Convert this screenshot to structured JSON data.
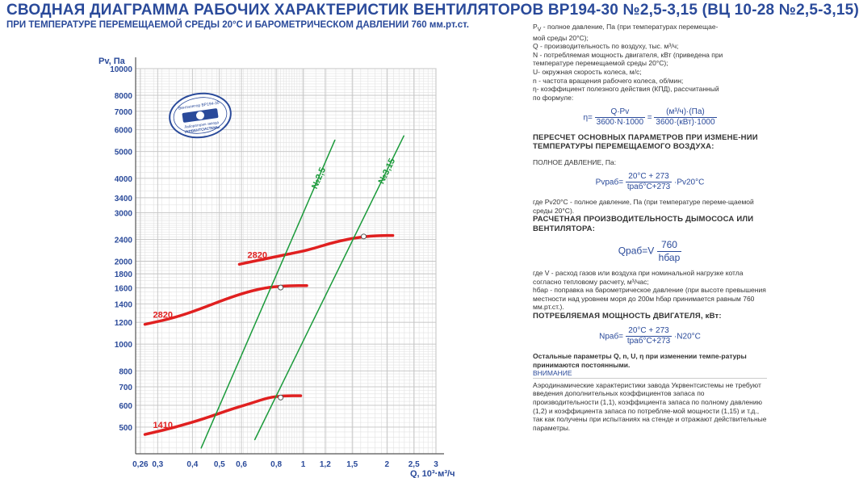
{
  "header": {
    "title": "СВОДНАЯ  ДИАГРАММА РАБОЧИХ ХАРАКТЕРИСТИК ВЕНТИЛЯТОРОВ ВР194-30 №2,5-3,15 (ВЦ 10-28 №2,5-3,15)",
    "subtitle": "ПРИ ТЕМПЕРАТУРЕ ПЕРЕМЕЩАЕМОЙ СРЕДЫ 20°С И БАРОМЕТРИЧЕСКОМ ДАВЛЕНИИ 760 мм.рт.ст."
  },
  "logo": {
    "top_text": "Вентилятор ВР194-30",
    "bottom_text1": "Лаборатория завода",
    "bottom_text2": "УКРВЕНТСИСТЕМЫ"
  },
  "chart_data": {
    "type": "line",
    "xlabel": "Q, 10³·м³/ч",
    "ylabel": "Pv, Па",
    "x_scale": "log",
    "y_scale": "log",
    "xlim": [
      0.25,
      3
    ],
    "ylim": [
      400,
      10000
    ],
    "x_ticks": [
      "0,26",
      "0,3",
      "0,4",
      "0,5",
      "0,6",
      "0,8",
      "1",
      "1,2",
      "1,5",
      "2",
      "2,5",
      "3"
    ],
    "x_tick_values": [
      0.26,
      0.3,
      0.4,
      0.5,
      0.6,
      0.8,
      1,
      1.2,
      1.5,
      2,
      2.5,
      3
    ],
    "y_ticks": [
      "500",
      "600",
      "700",
      "800",
      "1000",
      "1200",
      "1400",
      "1600",
      "1800",
      "2000",
      "2400",
      "3000",
      "3400",
      "4000",
      "5000",
      "6000",
      "7000",
      "8000",
      "10000"
    ],
    "y_tick_values": [
      500,
      600,
      700,
      800,
      1000,
      1200,
      1400,
      1600,
      1800,
      2000,
      2400,
      3000,
      3400,
      4000,
      5000,
      6000,
      7000,
      8000,
      10000
    ],
    "series": [
      {
        "name": "1410",
        "color": "#e02020",
        "points": [
          [
            0.27,
            470
          ],
          [
            0.35,
            500
          ],
          [
            0.45,
            540
          ],
          [
            0.55,
            580
          ],
          [
            0.65,
            610
          ],
          [
            0.75,
            640
          ],
          [
            0.85,
            650
          ],
          [
            0.98,
            650
          ]
        ],
        "marker": [
          0.83,
          640
        ]
      },
      {
        "name": "2820",
        "color": "#e02020",
        "points": [
          [
            0.27,
            1180
          ],
          [
            0.35,
            1250
          ],
          [
            0.45,
            1370
          ],
          [
            0.55,
            1480
          ],
          [
            0.65,
            1560
          ],
          [
            0.75,
            1610
          ],
          [
            0.9,
            1630
          ],
          [
            1.03,
            1630
          ]
        ],
        "marker": [
          0.83,
          1605
        ]
      },
      {
        "name": "2820",
        "color": "#e02020",
        "points": [
          [
            0.59,
            1950
          ],
          [
            0.75,
            2050
          ],
          [
            0.9,
            2130
          ],
          [
            1.05,
            2200
          ],
          [
            1.3,
            2350
          ],
          [
            1.6,
            2450
          ],
          [
            1.9,
            2480
          ],
          [
            2.1,
            2480
          ]
        ],
        "marker": [
          1.65,
          2460
        ]
      },
      {
        "name": "№2,5",
        "color": "#1a9a3a",
        "points": [
          [
            0.43,
            420
          ],
          [
            1.3,
            5500
          ]
        ]
      },
      {
        "name": "№3,15",
        "color": "#1a9a3a",
        "points": [
          [
            0.67,
            450
          ],
          [
            2.3,
            5700
          ]
        ]
      }
    ]
  },
  "legend": {
    "l1": "P",
    "l1_sub": "V",
    "l1_rest": " - полное давление, Па (при температурах перемещае-",
    "l1b": "мой среды 20°С);",
    "l2": "Q - производительность по воздуху, тыс. м³/ч;",
    "l3": "N - потребляемая мощность двигателя, кВт (приведена при",
    "l3b": "температуре перемещаемой среды 20°С);",
    "l4": "U- окружная скорость колеса, м/с;",
    "l5": "n - частота вращения рабочего колеса, об/мин;",
    "l6": "η- коэффициент полезного действия (КПД), рассчитанный",
    "l6b": "по формуле:"
  },
  "formula_eta": {
    "lhs": "η=",
    "num1": "Q·Pv",
    "den1": "3600·N·1000",
    "eq": "=",
    "num2": "(м³/ч)·(Па)",
    "den2": "3600·(кВт)·1000"
  },
  "recalc": {
    "title": "ПЕРЕСЧЕТ ОСНОВНЫХ ПАРАМЕТРОВ ПРИ ИЗМЕНЕ-НИИ ТЕМПЕРАТУРЫ ПЕРЕМЕЩАЕМОГО ВОЗДУХА:",
    "p_label": "ПОЛНОЕ ДАВЛЕНИЕ, Па:",
    "p_lhs": "Pvраб=",
    "p_num": "20°С + 273",
    "p_den": "tраб°С+273",
    "p_rhs": "·Pv20°С",
    "p_note": "где Pv20°С - полное давление, Па (при температуре переме-щаемой среды 20°С).",
    "q_label": "РАСЧЕТНАЯ ПРОИЗВОДИТЕЛЬНОСТЬ ДЫМОСОСА ИЛИ ВЕНТИЛЯТОРА:",
    "q_lhs": "Qраб=V",
    "q_num": "760",
    "q_den": "hбар",
    "q_note1": "где V - расход газов или воздуха при номинальной нагрузке котла согласно тепловому расчету, м³/час;",
    "q_note2": "hбар - поправка на барометрическое давление (при высоте превышения местности над уровнем моря до 200м hбар принимается равным 760 мм.рт.ст.).",
    "n_label": "ПОТРЕБЛЯЕМАЯ МОЩНОСТЬ ДВИГАТЕЛЯ, кВт:",
    "n_lhs": "Nраб=",
    "n_num": "20°С + 273",
    "n_den": "tраб°С+273",
    "n_rhs": "·N20°С",
    "rest": "Остальные параметры Q, n, U, η при изменении темпе-ратуры принимаются постоянными."
  },
  "warning": {
    "title": "ВНИМАНИЕ",
    "text": "Аэродинамические характеристики завода Укрвентсистемы не требуют введения дополнительных коэффициентов запаса по производительности (1,1), коэффициента запаса по полному давлению (1,2) и коэффициента запаса по потребляе-мой мощности (1,15) и т.д., так как получены при испытаниях на стенде и отражают действительные параметры."
  }
}
